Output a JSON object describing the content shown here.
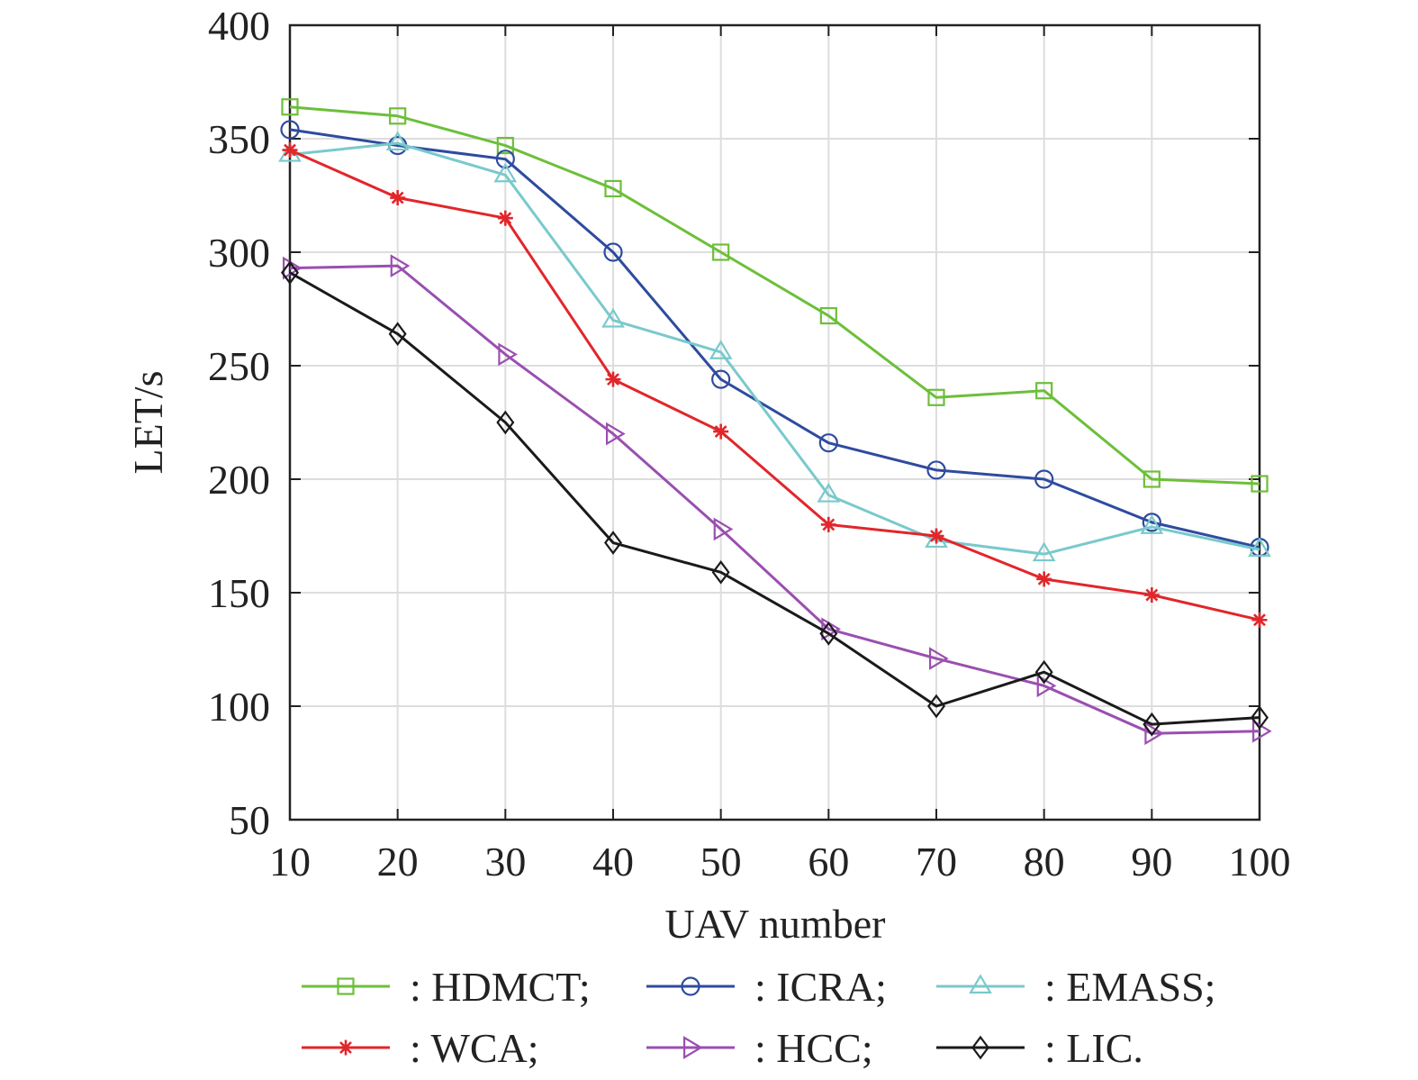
{
  "chart_data": {
    "type": "line",
    "title": "",
    "xlabel": "UAV number",
    "ylabel": "LET/s",
    "x": [
      10,
      20,
      30,
      40,
      50,
      60,
      70,
      80,
      90,
      100
    ],
    "xticks": [
      10,
      20,
      30,
      40,
      50,
      60,
      70,
      80,
      90,
      100
    ],
    "yticks": [
      50,
      100,
      150,
      200,
      250,
      300,
      350,
      400
    ],
    "xlim": [
      10,
      100
    ],
    "ylim": [
      50,
      400
    ],
    "grid": true,
    "legend_position": "bottom",
    "series": [
      {
        "name": ": HDMCT;",
        "color": "#6dbf3a",
        "marker": "square",
        "values": [
          364,
          360,
          347,
          328,
          300,
          272,
          236,
          239,
          200,
          198
        ]
      },
      {
        "name": ": ICRA;",
        "color": "#2e4b9f",
        "marker": "circle",
        "values": [
          354,
          347,
          341,
          300,
          244,
          216,
          204,
          200,
          181,
          170
        ]
      },
      {
        "name": ": EMASS;",
        "color": "#79c9cc",
        "marker": "triangle-up",
        "values": [
          343,
          348,
          334,
          270,
          256,
          193,
          173,
          167,
          179,
          169
        ]
      },
      {
        "name": ": WCA;",
        "color": "#e2262a",
        "marker": "asterisk",
        "values": [
          345,
          324,
          315,
          244,
          221,
          180,
          175,
          156,
          149,
          138
        ]
      },
      {
        "name": ": HCC;",
        "color": "#9a4fb0",
        "marker": "triangle-right",
        "values": [
          293,
          294,
          255,
          220,
          178,
          134,
          121,
          109,
          88,
          89
        ]
      },
      {
        "name": ": LIC.",
        "color": "#1a1a1a",
        "marker": "diamond",
        "values": [
          291,
          264,
          225,
          172,
          159,
          132,
          100,
          115,
          92,
          95
        ]
      }
    ]
  }
}
